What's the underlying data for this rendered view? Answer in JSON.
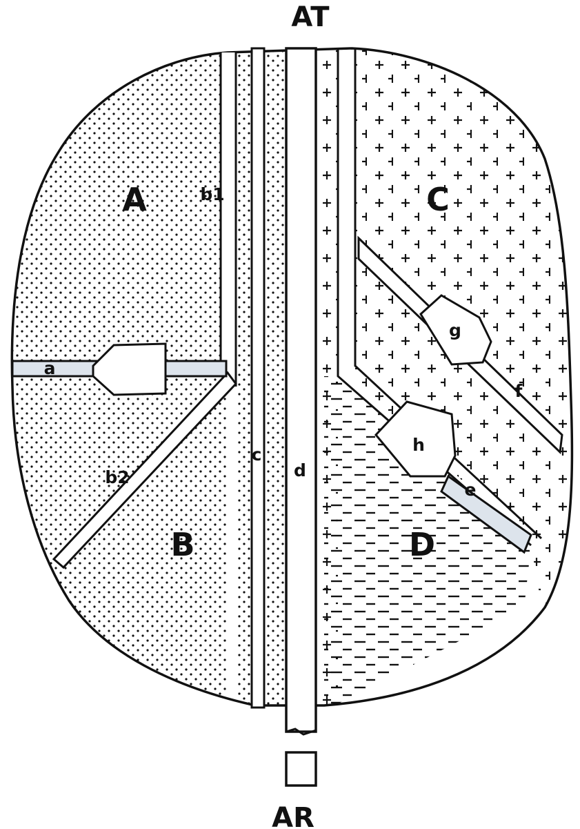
{
  "top_label": "AT",
  "bottom_label": "AR",
  "regions": {
    "A": "A",
    "B": "B",
    "C": "C",
    "D": "D"
  },
  "channels": {
    "a": "a",
    "b1": "b1",
    "b2": "b2",
    "c": "c",
    "d": "d",
    "e": "e",
    "f": "f"
  },
  "nodes": {
    "g": "g",
    "h": "h"
  },
  "colors": {
    "ink": "#111111",
    "paper": "#ffffff",
    "highlight_channel": "#dde4ec"
  }
}
